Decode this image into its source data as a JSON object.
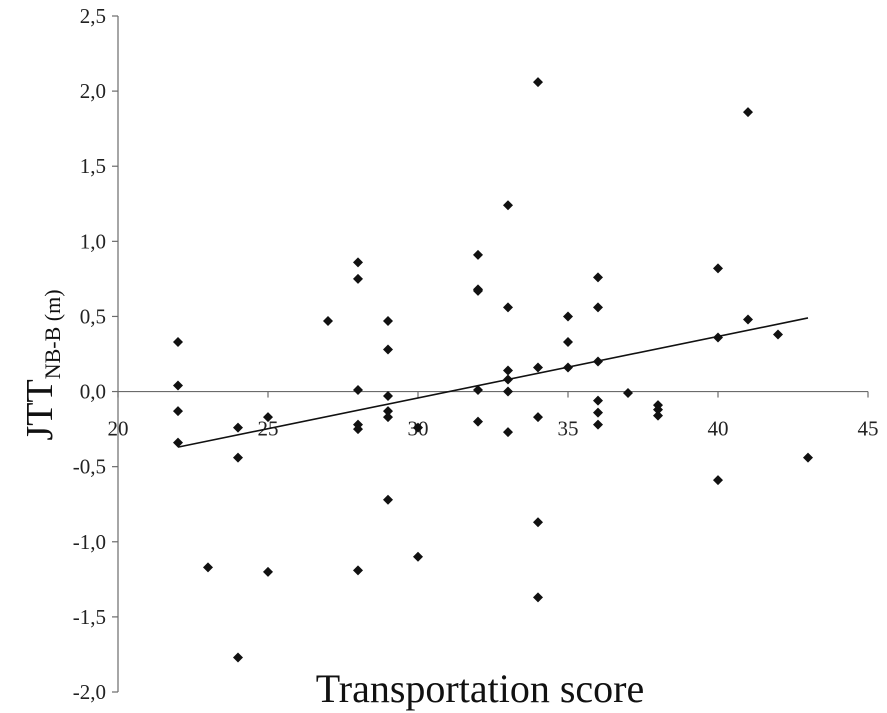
{
  "chart_data": {
    "type": "scatter",
    "title": "",
    "xlabel": "Transportation score",
    "ylabel": {
      "main": "JTT",
      "subscript": "NB-B (m)"
    },
    "xlim": [
      20,
      45
    ],
    "ylim": [
      -2.0,
      2.5
    ],
    "x_ticks": [
      "20",
      "25",
      "30",
      "35",
      "40",
      "45"
    ],
    "y_ticks": [
      "2,5",
      "2,0",
      "1,5",
      "1,0",
      "0,5",
      "0,0",
      "-0,5",
      "-1,0",
      "-1,5",
      "-2,0"
    ],
    "grid": false,
    "legend": "none",
    "marker": "diamond",
    "marker_color": "#111111",
    "trendline": {
      "x": [
        22,
        43
      ],
      "y": [
        -0.37,
        0.49
      ]
    },
    "points": [
      {
        "x": 22,
        "y": 0.33
      },
      {
        "x": 22,
        "y": 0.04
      },
      {
        "x": 22,
        "y": -0.13
      },
      {
        "x": 22,
        "y": -0.34
      },
      {
        "x": 23,
        "y": -1.17
      },
      {
        "x": 24,
        "y": -0.24
      },
      {
        "x": 24,
        "y": -0.44
      },
      {
        "x": 24,
        "y": -1.77
      },
      {
        "x": 25,
        "y": -0.17
      },
      {
        "x": 25,
        "y": -1.2
      },
      {
        "x": 27,
        "y": 0.47
      },
      {
        "x": 28,
        "y": 0.86
      },
      {
        "x": 28,
        "y": 0.75
      },
      {
        "x": 28,
        "y": 0.01
      },
      {
        "x": 28,
        "y": -0.22
      },
      {
        "x": 28,
        "y": -0.25
      },
      {
        "x": 28,
        "y": -1.19
      },
      {
        "x": 29,
        "y": 0.47
      },
      {
        "x": 29,
        "y": 0.28
      },
      {
        "x": 29,
        "y": -0.03
      },
      {
        "x": 29,
        "y": -0.13
      },
      {
        "x": 29,
        "y": -0.17
      },
      {
        "x": 29,
        "y": -0.72
      },
      {
        "x": 30,
        "y": -0.24
      },
      {
        "x": 30,
        "y": -1.1
      },
      {
        "x": 32,
        "y": 0.91
      },
      {
        "x": 32,
        "y": 0.68
      },
      {
        "x": 32,
        "y": 0.67
      },
      {
        "x": 32,
        "y": 0.01
      },
      {
        "x": 32,
        "y": -0.2
      },
      {
        "x": 33,
        "y": 1.24
      },
      {
        "x": 33,
        "y": 0.56
      },
      {
        "x": 33,
        "y": 0.14
      },
      {
        "x": 33,
        "y": 0.08
      },
      {
        "x": 33,
        "y": 0.0
      },
      {
        "x": 33,
        "y": -0.27
      },
      {
        "x": 34,
        "y": 2.06
      },
      {
        "x": 34,
        "y": 0.16
      },
      {
        "x": 34,
        "y": -0.17
      },
      {
        "x": 34,
        "y": -0.87
      },
      {
        "x": 34,
        "y": -1.37
      },
      {
        "x": 35,
        "y": 0.5
      },
      {
        "x": 35,
        "y": 0.33
      },
      {
        "x": 35,
        "y": 0.16
      },
      {
        "x": 36,
        "y": 0.76
      },
      {
        "x": 36,
        "y": 0.56
      },
      {
        "x": 36,
        "y": 0.2
      },
      {
        "x": 36,
        "y": -0.06
      },
      {
        "x": 36,
        "y": -0.14
      },
      {
        "x": 36,
        "y": -0.22
      },
      {
        "x": 37,
        "y": -0.01
      },
      {
        "x": 38,
        "y": -0.09
      },
      {
        "x": 38,
        "y": -0.12
      },
      {
        "x": 38,
        "y": -0.16
      },
      {
        "x": 40,
        "y": 0.82
      },
      {
        "x": 40,
        "y": 0.36
      },
      {
        "x": 40,
        "y": -0.59
      },
      {
        "x": 41,
        "y": 1.86
      },
      {
        "x": 41,
        "y": 0.48
      },
      {
        "x": 42,
        "y": 0.38
      },
      {
        "x": 43,
        "y": -0.44
      }
    ]
  }
}
